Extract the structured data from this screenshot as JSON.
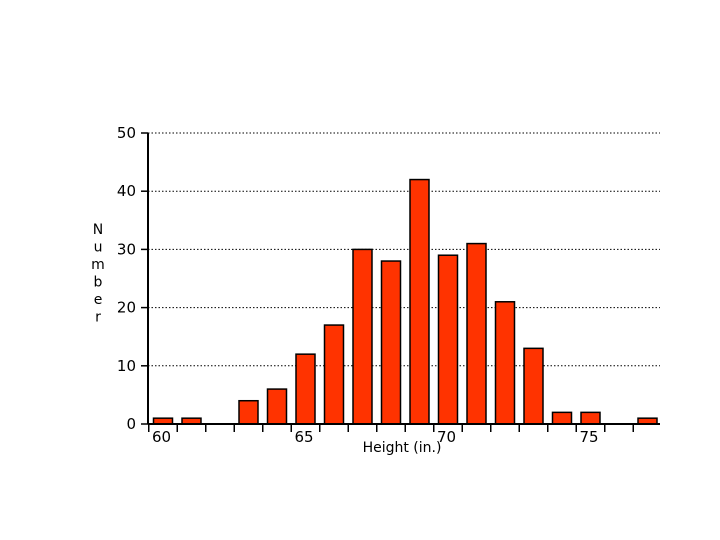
{
  "chart_data": {
    "type": "bar",
    "title": "",
    "xlabel": "Height (in.)",
    "ylabel": "Number",
    "ylim": [
      0,
      50
    ],
    "yticks": [
      0,
      10,
      20,
      30,
      40,
      50
    ],
    "y_grid": true,
    "x_tick_labels": [
      {
        "label": "60",
        "x": 60
      },
      {
        "label": "65",
        "x": 65
      },
      {
        "label": "70",
        "x": 70
      },
      {
        "label": "75",
        "x": 75
      }
    ],
    "categories": [
      60,
      61,
      62,
      63,
      64,
      65,
      66,
      67,
      68,
      69,
      70,
      71,
      72,
      73,
      74,
      75,
      76,
      77
    ],
    "values": [
      1,
      1,
      0,
      4,
      6,
      12,
      17,
      30,
      28,
      42,
      29,
      31,
      21,
      13,
      2,
      2,
      0,
      1
    ],
    "bar_color": "#ff3300"
  }
}
